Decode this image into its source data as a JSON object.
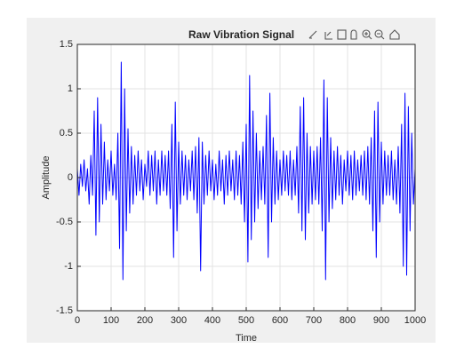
{
  "chart_data": {
    "type": "line",
    "title": "Raw Vibration Signal",
    "x_label": "Time",
    "y_label": "Amplitude",
    "xlim": [
      0,
      1000
    ],
    "ylim": [
      -1.5,
      1.5
    ],
    "xticks": [
      0,
      100,
      200,
      300,
      400,
      500,
      600,
      700,
      800,
      900,
      1000
    ],
    "yticks": [
      -1.5,
      -1,
      -0.5,
      0,
      0.5,
      1,
      1.5
    ],
    "grid": true,
    "x": [
      0,
      5,
      10,
      15,
      20,
      25,
      30,
      35,
      40,
      45,
      50,
      55,
      60,
      65,
      70,
      75,
      80,
      85,
      90,
      95,
      100,
      105,
      110,
      115,
      120,
      125,
      130,
      135,
      140,
      145,
      150,
      155,
      160,
      165,
      170,
      175,
      180,
      185,
      190,
      195,
      200,
      205,
      210,
      215,
      220,
      225,
      230,
      235,
      240,
      245,
      250,
      255,
      260,
      265,
      270,
      275,
      280,
      285,
      290,
      295,
      300,
      305,
      310,
      315,
      320,
      325,
      330,
      335,
      340,
      345,
      350,
      355,
      360,
      365,
      370,
      375,
      380,
      385,
      390,
      395,
      400,
      405,
      410,
      415,
      420,
      425,
      430,
      435,
      440,
      445,
      450,
      455,
      460,
      465,
      470,
      475,
      480,
      485,
      490,
      495,
      500,
      505,
      510,
      515,
      520,
      525,
      530,
      535,
      540,
      545,
      550,
      555,
      560,
      565,
      570,
      575,
      580,
      585,
      590,
      595,
      600,
      605,
      610,
      615,
      620,
      625,
      630,
      635,
      640,
      645,
      650,
      655,
      660,
      665,
      670,
      675,
      680,
      685,
      690,
      695,
      700,
      705,
      710,
      715,
      720,
      725,
      730,
      735,
      740,
      745,
      750,
      755,
      760,
      765,
      770,
      775,
      780,
      785,
      790,
      795,
      800,
      805,
      810,
      815,
      820,
      825,
      830,
      835,
      840,
      845,
      850,
      855,
      860,
      865,
      870,
      875,
      880,
      885,
      890,
      895,
      900,
      905,
      910,
      915,
      920,
      925,
      930,
      935,
      940,
      945,
      950,
      955,
      960,
      965,
      970,
      975,
      980,
      985,
      990,
      995,
      1000
    ],
    "series": [
      {
        "name": "Raw Vibration Signal",
        "color": "#0000ff",
        "values": [
          0.1,
          -0.2,
          0.15,
          -0.1,
          0.2,
          -0.15,
          0.1,
          -0.3,
          0.25,
          -0.2,
          0.75,
          -0.65,
          0.9,
          -0.5,
          0.6,
          -0.3,
          0.4,
          -0.25,
          0.2,
          -0.15,
          0.3,
          -0.2,
          0.15,
          -0.25,
          0.5,
          -0.8,
          1.3,
          -1.15,
          1.0,
          -0.6,
          0.55,
          -0.4,
          0.35,
          -0.3,
          0.25,
          -0.2,
          0.3,
          -0.15,
          0.2,
          -0.25,
          0.15,
          -0.1,
          0.3,
          -0.2,
          0.25,
          -0.15,
          0.3,
          -0.3,
          0.2,
          -0.2,
          0.3,
          -0.15,
          0.25,
          -0.2,
          0.3,
          -0.35,
          0.6,
          -0.9,
          0.85,
          -0.6,
          0.4,
          -0.3,
          0.3,
          -0.2,
          0.25,
          -0.25,
          0.2,
          -0.15,
          0.3,
          -0.25,
          0.35,
          -0.4,
          0.45,
          -1.05,
          0.4,
          -0.3,
          0.25,
          -0.2,
          0.3,
          -0.15,
          0.2,
          -0.25,
          0.15,
          -0.2,
          0.3,
          -0.15,
          0.2,
          -0.3,
          0.25,
          -0.2,
          0.3,
          -0.15,
          0.2,
          -0.25,
          0.3,
          -0.2,
          0.25,
          -0.3,
          0.4,
          -0.5,
          0.6,
          -0.95,
          1.15,
          -0.7,
          0.75,
          -0.5,
          0.5,
          -0.35,
          0.3,
          -0.25,
          0.35,
          -0.3,
          0.7,
          -0.9,
          0.95,
          -0.5,
          0.45,
          -0.3,
          0.3,
          -0.25,
          0.2,
          -0.2,
          0.3,
          -0.15,
          0.25,
          -0.2,
          0.3,
          -0.25,
          0.2,
          -0.2,
          0.35,
          -0.4,
          0.8,
          -0.6,
          0.9,
          -0.7,
          0.5,
          -0.4,
          0.35,
          -0.3,
          0.3,
          -0.25,
          0.35,
          -0.3,
          0.45,
          -0.6,
          1.1,
          -1.15,
          0.9,
          -0.5,
          0.45,
          -0.35,
          0.3,
          -0.25,
          0.35,
          -0.2,
          0.25,
          -0.3,
          0.2,
          -0.15,
          0.3,
          -0.2,
          0.25,
          -0.25,
          0.3,
          -0.2,
          0.2,
          -0.15,
          0.25,
          -0.2,
          0.3,
          -0.25,
          0.35,
          -0.3,
          0.45,
          -0.6,
          0.75,
          -0.9,
          0.85,
          -0.5,
          0.4,
          -0.3,
          0.3,
          -0.2,
          0.25,
          -0.2,
          0.3,
          -0.25,
          0.2,
          -0.3,
          0.35,
          -0.4,
          0.6,
          -1.0,
          0.95,
          -1.1,
          0.8,
          -0.6,
          0.5,
          -0.3,
          0.1
        ]
      }
    ]
  }
}
